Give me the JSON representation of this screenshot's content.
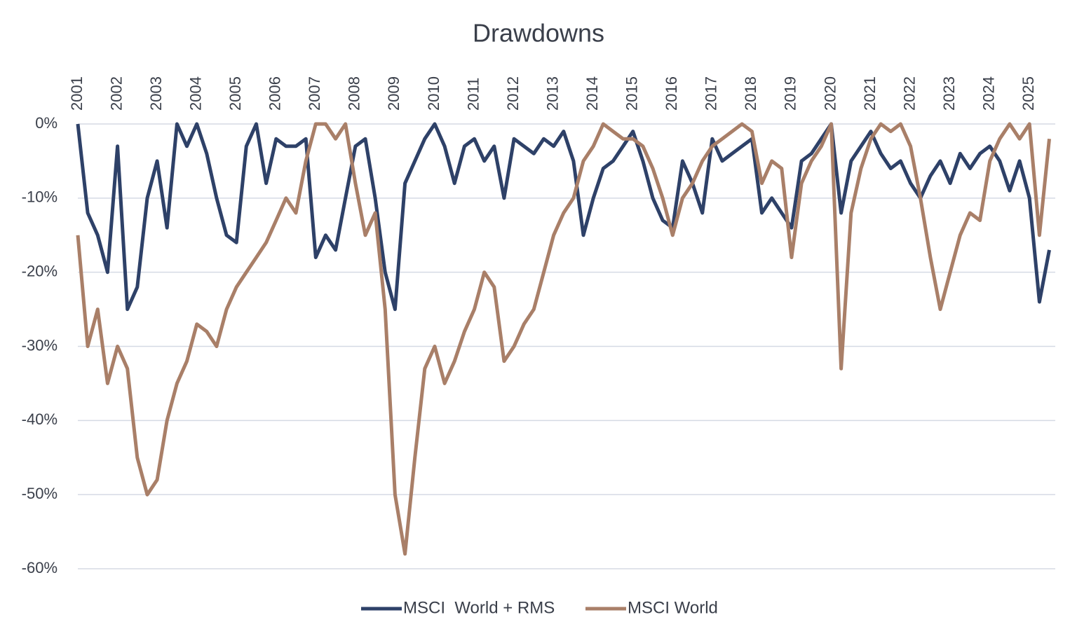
{
  "chart_data": {
    "type": "line",
    "title": "Drawdowns",
    "x": [
      2001,
      2001.25,
      2001.5,
      2001.75,
      2002,
      2002.25,
      2002.5,
      2002.75,
      2003,
      2003.25,
      2003.5,
      2003.75,
      2004,
      2004.25,
      2004.5,
      2004.75,
      2005,
      2005.25,
      2005.5,
      2005.75,
      2006,
      2006.25,
      2006.5,
      2006.75,
      2007,
      2007.25,
      2007.5,
      2007.75,
      2008,
      2008.25,
      2008.5,
      2008.75,
      2009,
      2009.25,
      2009.5,
      2009.75,
      2010,
      2010.25,
      2010.5,
      2010.75,
      2011,
      2011.25,
      2011.5,
      2011.75,
      2012,
      2012.25,
      2012.5,
      2012.75,
      2013,
      2013.25,
      2013.5,
      2013.75,
      2014,
      2014.25,
      2014.5,
      2014.75,
      2015,
      2015.25,
      2015.5,
      2015.75,
      2016,
      2016.25,
      2016.5,
      2016.75,
      2017,
      2017.25,
      2017.5,
      2017.75,
      2018,
      2018.25,
      2018.5,
      2018.75,
      2019,
      2019.25,
      2019.5,
      2019.75,
      2020,
      2020.25,
      2020.5,
      2020.75,
      2021,
      2021.25,
      2021.5,
      2021.75,
      2022,
      2022.25,
      2022.5,
      2022.75,
      2023,
      2023.25,
      2023.5,
      2023.75,
      2024,
      2024.25,
      2024.5,
      2024.75,
      2025,
      2025.25,
      2025.5
    ],
    "series": [
      {
        "name": "MSCI  World + RMS",
        "color": "#2e4168",
        "values": [
          0,
          -12,
          -15,
          -20,
          -3,
          -25,
          -22,
          -10,
          -5,
          -14,
          0,
          -3,
          0,
          -4,
          -10,
          -15,
          -16,
          -3,
          0,
          -8,
          -2,
          -3,
          -3,
          -2,
          -18,
          -15,
          -17,
          -10,
          -3,
          -2,
          -10,
          -20,
          -25,
          -8,
          -5,
          -2,
          0,
          -3,
          -8,
          -3,
          -2,
          -5,
          -3,
          -10,
          -2,
          -3,
          -4,
          -2,
          -3,
          -1,
          -5,
          -15,
          -10,
          -6,
          -5,
          -3,
          -1,
          -5,
          -10,
          -13,
          -14,
          -5,
          -8,
          -12,
          -2,
          -5,
          -4,
          -3,
          -2,
          -12,
          -10,
          -12,
          -14,
          -5,
          -4,
          -2,
          0,
          -12,
          -5,
          -3,
          -1,
          -4,
          -6,
          -5,
          -8,
          -10,
          -7,
          -5,
          -8,
          -4,
          -6,
          -4,
          -3,
          -5,
          -9,
          -5,
          -10,
          -24,
          -17
        ]
      },
      {
        "name": "MSCI World",
        "color": "#a97f68",
        "values": [
          -15,
          -30,
          -25,
          -35,
          -30,
          -33,
          -45,
          -50,
          -48,
          -40,
          -35,
          -32,
          -27,
          -28,
          -30,
          -25,
          -22,
          -20,
          -18,
          -16,
          -13,
          -10,
          -12,
          -5,
          0,
          0,
          -2,
          0,
          -8,
          -15,
          -12,
          -25,
          -50,
          -58,
          -45,
          -33,
          -30,
          -35,
          -32,
          -28,
          -25,
          -20,
          -22,
          -32,
          -30,
          -27,
          -25,
          -20,
          -15,
          -12,
          -10,
          -5,
          -3,
          0,
          -1,
          -2,
          -2,
          -3,
          -6,
          -10,
          -15,
          -10,
          -8,
          -5,
          -3,
          -2,
          -1,
          0,
          -1,
          -8,
          -5,
          -6,
          -18,
          -8,
          -5,
          -3,
          0,
          -33,
          -12,
          -6,
          -2,
          0,
          -1,
          0,
          -3,
          -10,
          -18,
          -25,
          -20,
          -15,
          -12,
          -13,
          -5,
          -2,
          0,
          -2,
          0,
          -15,
          -2
        ]
      }
    ],
    "xlim": [
      2001,
      2025.65
    ],
    "xticks": [
      2001,
      2002,
      2003,
      2004,
      2005,
      2006,
      2007,
      2008,
      2009,
      2010,
      2011,
      2012,
      2013,
      2014,
      2015,
      2016,
      2017,
      2018,
      2019,
      2020,
      2021,
      2022,
      2023,
      2024,
      2025
    ],
    "ylim": [
      -60,
      0
    ],
    "yticks": [
      {
        "value": 0,
        "label": "0%"
      },
      {
        "value": -10,
        "label": "-10%"
      },
      {
        "value": -20,
        "label": "-20%"
      },
      {
        "value": -30,
        "label": "-30%"
      },
      {
        "value": -40,
        "label": "-40%"
      },
      {
        "value": -50,
        "label": "-50%"
      },
      {
        "value": -60,
        "label": "-60%"
      }
    ],
    "grid": true,
    "legend": "bottom"
  }
}
